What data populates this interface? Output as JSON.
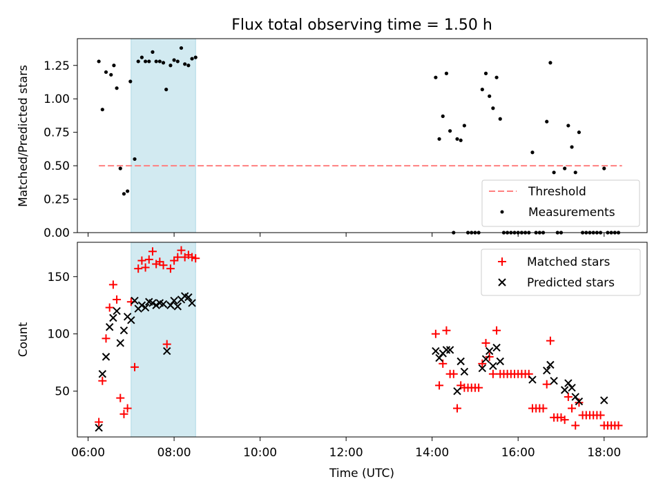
{
  "chart_data": [
    {
      "type": "scatter",
      "title": "Flux total observing time = 1.50 h",
      "xlabel": "",
      "ylabel": "Matched/Predicted stars",
      "xlim": [
        "05:45",
        "19:00"
      ],
      "ylim": [
        0,
        1.45
      ],
      "xticks": [
        "06:00",
        "08:00",
        "10:00",
        "12:00",
        "14:00",
        "16:00",
        "18:00"
      ],
      "yticks": [
        0.0,
        0.25,
        0.5,
        0.75,
        1.0,
        1.25
      ],
      "ytick_labels": [
        "0.00",
        "0.25",
        "0.50",
        "0.75",
        "1.00",
        "1.25"
      ],
      "highlight_span": [
        "07:00",
        "08:30"
      ],
      "legend_position": "lower right",
      "colors": {
        "threshold": "#ff7f7f",
        "measurements": "#000000",
        "span": "#add8e6"
      },
      "series": [
        {
          "name": "Threshold",
          "style": "dashed-line",
          "x": [
            "06:15",
            "18:25"
          ],
          "y": [
            0.5,
            0.5
          ]
        },
        {
          "name": "Measurements",
          "style": "point",
          "points": [
            [
              "06:15",
              1.28
            ],
            [
              "06:20",
              0.92
            ],
            [
              "06:25",
              1.2
            ],
            [
              "06:32",
              1.18
            ],
            [
              "06:36",
              1.25
            ],
            [
              "06:40",
              1.08
            ],
            [
              "06:45",
              0.48
            ],
            [
              "06:50",
              0.29
            ],
            [
              "06:55",
              0.31
            ],
            [
              "06:59",
              1.13
            ],
            [
              "07:05",
              0.55
            ],
            [
              "07:10",
              1.28
            ],
            [
              "07:15",
              1.31
            ],
            [
              "07:20",
              1.28
            ],
            [
              "07:25",
              1.28
            ],
            [
              "07:30",
              1.35
            ],
            [
              "07:35",
              1.28
            ],
            [
              "07:40",
              1.28
            ],
            [
              "07:45",
              1.27
            ],
            [
              "07:49",
              1.07
            ],
            [
              "07:55",
              1.25
            ],
            [
              "08:00",
              1.29
            ],
            [
              "08:05",
              1.28
            ],
            [
              "08:10",
              1.38
            ],
            [
              "08:15",
              1.26
            ],
            [
              "08:20",
              1.25
            ],
            [
              "08:25",
              1.3
            ],
            [
              "08:30",
              1.31
            ],
            [
              "14:05",
              1.16
            ],
            [
              "14:10",
              0.7
            ],
            [
              "14:15",
              0.87
            ],
            [
              "14:20",
              1.19
            ],
            [
              "14:25",
              0.76
            ],
            [
              "14:30",
              0.0
            ],
            [
              "14:35",
              0.7
            ],
            [
              "14:40",
              0.69
            ],
            [
              "14:45",
              0.8
            ],
            [
              "14:50",
              0.0
            ],
            [
              "14:55",
              0.0
            ],
            [
              "15:00",
              0.0
            ],
            [
              "15:05",
              0.0
            ],
            [
              "15:10",
              1.07
            ],
            [
              "15:15",
              1.19
            ],
            [
              "15:20",
              1.02
            ],
            [
              "15:25",
              0.93
            ],
            [
              "15:30",
              1.16
            ],
            [
              "15:35",
              0.85
            ],
            [
              "15:40",
              0.0
            ],
            [
              "15:45",
              0.0
            ],
            [
              "15:50",
              0.0
            ],
            [
              "15:55",
              0.0
            ],
            [
              "16:00",
              0.0
            ],
            [
              "16:05",
              0.0
            ],
            [
              "16:10",
              0.0
            ],
            [
              "16:15",
              0.0
            ],
            [
              "16:20",
              0.6
            ],
            [
              "16:25",
              0.0
            ],
            [
              "16:30",
              0.0
            ],
            [
              "16:35",
              0.0
            ],
            [
              "16:40",
              0.83
            ],
            [
              "16:45",
              1.27
            ],
            [
              "16:50",
              0.45
            ],
            [
              "16:55",
              0.0
            ],
            [
              "17:00",
              0.0
            ],
            [
              "17:05",
              0.48
            ],
            [
              "17:10",
              0.8
            ],
            [
              "17:15",
              0.64
            ],
            [
              "17:20",
              0.45
            ],
            [
              "17:25",
              0.75
            ],
            [
              "17:30",
              0.0
            ],
            [
              "17:35",
              0.0
            ],
            [
              "17:40",
              0.0
            ],
            [
              "17:45",
              0.0
            ],
            [
              "17:50",
              0.0
            ],
            [
              "17:55",
              0.0
            ],
            [
              "18:00",
              0.48
            ],
            [
              "18:05",
              0.0
            ],
            [
              "18:10",
              0.0
            ],
            [
              "18:15",
              0.0
            ],
            [
              "18:20",
              0.0
            ]
          ]
        }
      ]
    },
    {
      "type": "scatter",
      "title": "",
      "xlabel": "Time (UTC)",
      "ylabel": "Count",
      "xlim": [
        "05:45",
        "19:00"
      ],
      "ylim": [
        10,
        180
      ],
      "xticks": [
        "06:00",
        "08:00",
        "10:00",
        "12:00",
        "14:00",
        "16:00",
        "18:00"
      ],
      "yticks": [
        50,
        100,
        150
      ],
      "ytick_labels": [
        "50",
        "100",
        "150"
      ],
      "highlight_span": [
        "07:00",
        "08:30"
      ],
      "legend_position": "upper right",
      "colors": {
        "matched": "#ff0000",
        "predicted": "#000000",
        "span": "#add8e6"
      },
      "series": [
        {
          "name": "Matched stars",
          "marker": "plus",
          "points": [
            [
              "06:15",
              23
            ],
            [
              "06:20",
              59
            ],
            [
              "06:25",
              96
            ],
            [
              "06:30",
              123
            ],
            [
              "06:35",
              143
            ],
            [
              "06:40",
              130
            ],
            [
              "06:45",
              44
            ],
            [
              "06:50",
              30
            ],
            [
              "06:55",
              35
            ],
            [
              "07:00",
              128
            ],
            [
              "07:05",
              71
            ],
            [
              "07:10",
              157
            ],
            [
              "07:15",
              164
            ],
            [
              "07:20",
              158
            ],
            [
              "07:25",
              165
            ],
            [
              "07:30",
              172
            ],
            [
              "07:35",
              161
            ],
            [
              "07:40",
              163
            ],
            [
              "07:45",
              160
            ],
            [
              "07:50",
              91
            ],
            [
              "07:55",
              157
            ],
            [
              "08:00",
              164
            ],
            [
              "08:05",
              167
            ],
            [
              "08:10",
              173
            ],
            [
              "08:15",
              167
            ],
            [
              "08:20",
              169
            ],
            [
              "08:25",
              167
            ],
            [
              "08:30",
              166
            ],
            [
              "14:05",
              100
            ],
            [
              "14:10",
              55
            ],
            [
              "14:15",
              74
            ],
            [
              "14:20",
              103
            ],
            [
              "14:25",
              65
            ],
            [
              "14:30",
              65
            ],
            [
              "14:35",
              35
            ],
            [
              "14:40",
              55
            ],
            [
              "14:45",
              53
            ],
            [
              "14:50",
              53
            ],
            [
              "14:55",
              53
            ],
            [
              "15:00",
              53
            ],
            [
              "15:05",
              53
            ],
            [
              "15:10",
              74
            ],
            [
              "15:15",
              92
            ],
            [
              "15:20",
              80
            ],
            [
              "15:25",
              65
            ],
            [
              "15:30",
              103
            ],
            [
              "15:35",
              65
            ],
            [
              "15:40",
              65
            ],
            [
              "15:45",
              65
            ],
            [
              "15:50",
              65
            ],
            [
              "15:55",
              65
            ],
            [
              "16:00",
              65
            ],
            [
              "16:05",
              65
            ],
            [
              "16:10",
              65
            ],
            [
              "16:15",
              65
            ],
            [
              "16:20",
              35
            ],
            [
              "16:25",
              35
            ],
            [
              "16:30",
              35
            ],
            [
              "16:35",
              35
            ],
            [
              "16:40",
              56
            ],
            [
              "16:45",
              94
            ],
            [
              "16:50",
              27
            ],
            [
              "16:55",
              27
            ],
            [
              "17:00",
              27
            ],
            [
              "17:05",
              25
            ],
            [
              "17:10",
              45
            ],
            [
              "17:15",
              35
            ],
            [
              "17:20",
              20
            ],
            [
              "17:25",
              40
            ],
            [
              "17:30",
              29
            ],
            [
              "17:35",
              29
            ],
            [
              "17:40",
              29
            ],
            [
              "17:45",
              29
            ],
            [
              "17:50",
              29
            ],
            [
              "17:55",
              29
            ],
            [
              "18:00",
              20
            ],
            [
              "18:05",
              20
            ],
            [
              "18:10",
              20
            ],
            [
              "18:15",
              20
            ],
            [
              "18:20",
              20
            ]
          ]
        },
        {
          "name": "Predicted stars",
          "marker": "x",
          "points": [
            [
              "06:15",
              18
            ],
            [
              "06:20",
              65
            ],
            [
              "06:25",
              80
            ],
            [
              "06:30",
              106
            ],
            [
              "06:35",
              114
            ],
            [
              "06:40",
              120
            ],
            [
              "06:45",
              92
            ],
            [
              "06:50",
              103
            ],
            [
              "06:55",
              115
            ],
            [
              "07:00",
              112
            ],
            [
              "07:05",
              129
            ],
            [
              "07:10",
              122
            ],
            [
              "07:15",
              125
            ],
            [
              "07:20",
              123
            ],
            [
              "07:25",
              128
            ],
            [
              "07:30",
              127
            ],
            [
              "07:35",
              125
            ],
            [
              "07:40",
              127
            ],
            [
              "07:45",
              126
            ],
            [
              "07:50",
              85
            ],
            [
              "07:55",
              125
            ],
            [
              "08:00",
              129
            ],
            [
              "08:05",
              124
            ],
            [
              "08:10",
              130
            ],
            [
              "08:15",
              133
            ],
            [
              "08:20",
              132
            ],
            [
              "08:25",
              127
            ],
            [
              "14:05",
              85
            ],
            [
              "14:10",
              79
            ],
            [
              "14:15",
              83
            ],
            [
              "14:20",
              86
            ],
            [
              "14:25",
              86
            ],
            [
              "14:35",
              50
            ],
            [
              "14:40",
              76
            ],
            [
              "14:45",
              67
            ],
            [
              "15:10",
              70
            ],
            [
              "15:15",
              78
            ],
            [
              "15:20",
              85
            ],
            [
              "15:25",
              72
            ],
            [
              "15:30",
              88
            ],
            [
              "15:35",
              76
            ],
            [
              "16:20",
              60
            ],
            [
              "16:40",
              68
            ],
            [
              "16:45",
              73
            ],
            [
              "16:50",
              59
            ],
            [
              "17:05",
              51
            ],
            [
              "17:10",
              57
            ],
            [
              "17:15",
              53
            ],
            [
              "17:20",
              45
            ],
            [
              "17:25",
              41
            ],
            [
              "18:00",
              42
            ]
          ]
        }
      ]
    }
  ]
}
